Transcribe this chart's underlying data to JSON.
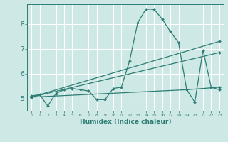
{
  "bg_color": "#cde8e5",
  "grid_color": "#ffffff",
  "line_color": "#2d7d74",
  "xlabel": "Humidex (Indice chaleur)",
  "xlim": [
    -0.5,
    23.5
  ],
  "ylim": [
    4.5,
    8.8
  ],
  "yticks": [
    5,
    6,
    7,
    8
  ],
  "xticks": [
    0,
    1,
    2,
    3,
    4,
    5,
    6,
    7,
    8,
    9,
    10,
    11,
    12,
    13,
    14,
    15,
    16,
    17,
    18,
    19,
    20,
    21,
    22,
    23
  ],
  "series": [
    {
      "x": [
        0,
        1,
        2,
        3,
        4,
        5,
        6,
        7,
        8,
        9,
        10,
        11,
        12,
        13,
        14,
        15,
        16,
        17,
        18,
        19,
        20,
        21,
        22,
        23
      ],
      "y": [
        5.1,
        5.15,
        4.7,
        5.2,
        5.35,
        5.4,
        5.35,
        5.3,
        4.95,
        4.95,
        5.4,
        5.45,
        6.5,
        8.05,
        8.6,
        8.6,
        8.2,
        7.7,
        7.25,
        5.35,
        4.85,
        6.95,
        5.45,
        5.35
      ],
      "has_markers": true
    },
    {
      "x": [
        0,
        23
      ],
      "y": [
        5.05,
        7.3
      ],
      "has_markers": true
    },
    {
      "x": [
        0,
        23
      ],
      "y": [
        5.05,
        6.85
      ],
      "has_markers": true
    },
    {
      "x": [
        0,
        19,
        23
      ],
      "y": [
        5.05,
        5.35,
        5.45
      ],
      "has_markers": true
    }
  ]
}
